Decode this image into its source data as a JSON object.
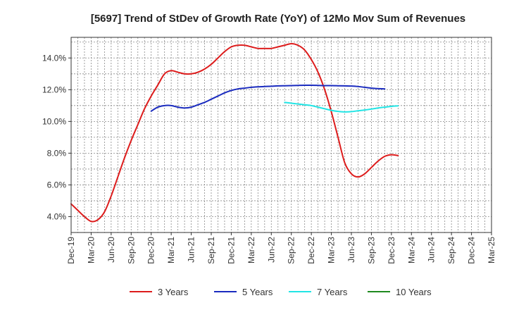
{
  "chart_data": {
    "type": "line",
    "title": "[5697]  Trend of StDev of Growth Rate (YoY) of 12Mo Mov Sum of Revenues",
    "xlabel": "",
    "ylabel": "",
    "x_ticks": [
      "Dec-19",
      "Mar-20",
      "Jun-20",
      "Sep-20",
      "Dec-20",
      "Mar-21",
      "Jun-21",
      "Sep-21",
      "Dec-21",
      "Mar-22",
      "Jun-22",
      "Sep-22",
      "Dec-22",
      "Mar-23",
      "Jun-23",
      "Sep-23",
      "Dec-23",
      "Mar-24",
      "Jun-24",
      "Sep-24",
      "Dec-24",
      "Mar-25"
    ],
    "y_ticks": [
      "4.0%",
      "6.0%",
      "8.0%",
      "10.0%",
      "12.0%",
      "14.0%"
    ],
    "ylim": [
      3.0,
      15.3
    ],
    "grid": true,
    "legend_position": "bottom",
    "series": [
      {
        "name": "3 Years",
        "color": "#dd1c1c",
        "start_index": 0,
        "values": [
          4.8,
          4.4,
          4.0,
          3.7,
          3.8,
          4.3,
          5.3,
          6.5,
          7.7,
          8.8,
          9.8,
          10.8,
          11.6,
          12.3,
          13.0,
          13.2,
          13.1,
          13.0,
          13.0,
          13.1,
          13.3,
          13.6,
          14.0,
          14.4,
          14.7,
          14.8,
          14.8,
          14.7,
          14.6,
          14.6,
          14.6,
          14.7,
          14.8,
          14.9,
          14.8,
          14.5,
          13.9,
          13.1,
          12.0,
          10.6,
          9.0,
          7.4,
          6.7,
          6.5,
          6.7,
          7.1,
          7.5,
          7.8,
          7.9,
          7.85
        ]
      },
      {
        "name": "5 Years",
        "color": "#1a2bbf",
        "start_index": 12,
        "values": [
          10.65,
          10.9,
          11.0,
          11.0,
          10.9,
          10.85,
          10.9,
          11.05,
          11.2,
          11.4,
          11.6,
          11.8,
          11.95,
          12.05,
          12.1,
          12.15,
          12.18,
          12.2,
          12.22,
          12.24,
          12.25,
          12.26,
          12.27,
          12.28,
          12.28,
          12.27,
          12.26,
          12.26,
          12.25,
          12.24,
          12.23,
          12.2,
          12.15,
          12.1,
          12.07,
          12.05
        ]
      },
      {
        "name": "7 Years",
        "color": "#22e5e5",
        "start_index": 32,
        "values": [
          11.2,
          11.15,
          11.1,
          11.05,
          11.0,
          10.9,
          10.8,
          10.7,
          10.63,
          10.6,
          10.62,
          10.67,
          10.72,
          10.78,
          10.85,
          10.9,
          10.95,
          10.98
        ]
      },
      {
        "name": "10 Years",
        "color": "#1f8a1f",
        "start_index": 0,
        "values": []
      }
    ]
  }
}
